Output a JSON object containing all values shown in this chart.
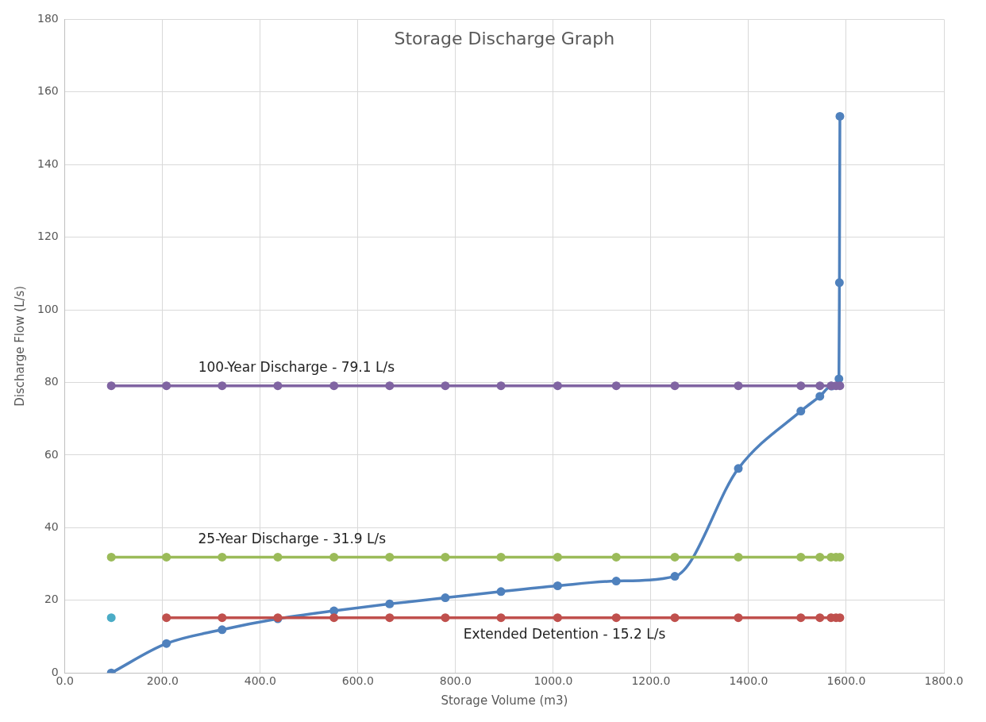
{
  "chart_data": {
    "type": "line",
    "title": "Storage Discharge Graph",
    "xlabel": "Storage Volume (m3)",
    "ylabel": "Discharge Flow (L/s)",
    "x": [
      95,
      208,
      322,
      436,
      551,
      665,
      779,
      893,
      1009,
      1129,
      1249,
      1379,
      1507,
      1546,
      1569,
      1579,
      1587
    ],
    "series": [
      {
        "name": "100-Year Discharge - 79.1 L/s",
        "color": "#8064a2",
        "values": [
          79.1,
          79.1,
          79.1,
          79.1,
          79.1,
          79.1,
          79.1,
          79.1,
          79.1,
          79.1,
          79.1,
          79.1,
          79.1,
          79.1,
          79.1,
          79.1,
          79.1
        ]
      },
      {
        "name": "25-Year Discharge - 31.9 L/s",
        "color": "#9bbb59",
        "values": [
          31.9,
          31.9,
          31.9,
          31.9,
          31.9,
          31.9,
          31.9,
          31.9,
          31.9,
          31.9,
          31.9,
          31.9,
          31.9,
          31.9,
          31.9,
          31.9,
          31.9
        ]
      },
      {
        "name": "Extended Detention - 15.2 L/s",
        "color": "#c0504d",
        "values": [
          null,
          15.2,
          15.2,
          15.2,
          15.2,
          15.2,
          15.2,
          15.2,
          15.2,
          15.2,
          15.2,
          15.2,
          15.2,
          15.2,
          15.2,
          15.2,
          15.2
        ]
      },
      {
        "type": "scatter",
        "color": "#4bacc6",
        "x": [
          95
        ],
        "values": [
          15.2
        ]
      },
      {
        "color": "#4f81bd",
        "x": [
          95,
          208,
          322,
          436,
          551,
          665,
          779,
          893,
          1009,
          1129,
          1249,
          1379,
          1507,
          1546,
          1570,
          1585,
          1586,
          1587
        ],
        "values": [
          0,
          8.1,
          11.9,
          14.9,
          17.1,
          19,
          20.7,
          22.4,
          24,
          25.3,
          26.6,
          56.3,
          72.1,
          76.2,
          79,
          81,
          107.5,
          153.3
        ]
      }
    ],
    "xlim": [
      0,
      1800
    ],
    "xticks": [
      {
        "value": 0,
        "label": "0.0"
      },
      {
        "value": 200,
        "label": "200.0"
      },
      {
        "value": 400,
        "label": "400.0"
      },
      {
        "value": 600,
        "label": "600.0"
      },
      {
        "value": 800,
        "label": "800.0"
      },
      {
        "value": 1000,
        "label": "1000.0"
      },
      {
        "value": 1200,
        "label": "1200.0"
      },
      {
        "value": 1400,
        "label": "1400.0"
      },
      {
        "value": 1600,
        "label": "1600.0"
      },
      {
        "value": 1800,
        "label": "1800.0"
      }
    ],
    "ylim": [
      0,
      180
    ],
    "yticks": [
      0,
      20,
      40,
      60,
      80,
      100,
      120,
      140,
      160,
      180
    ],
    "grid": true,
    "marker": "circle",
    "line_style": "solid"
  }
}
